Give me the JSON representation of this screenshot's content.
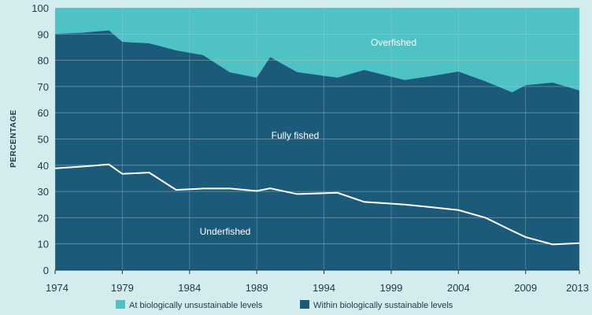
{
  "chart_data": {
    "type": "area",
    "ylabel": "PERCENTAGE",
    "xlabel": "",
    "ylim": [
      0,
      100
    ],
    "xlim": [
      1974,
      2013
    ],
    "x_ticks": [
      "1974",
      "1979",
      "1984",
      "1989",
      "1994",
      "1999",
      "2004",
      "2009",
      "2013"
    ],
    "y_ticks": [
      "0",
      "10",
      "20",
      "30",
      "40",
      "50",
      "60",
      "70",
      "80",
      "90",
      "100"
    ],
    "grid": true,
    "colors": {
      "unsustainable": "#4fc2c6",
      "sustainable": "#1b5a78",
      "line": "#ffffff",
      "grid": "#b8c9d0"
    },
    "series": [
      {
        "key": "sustainable_total",
        "x": [
          1974,
          1976,
          1978,
          1979,
          1981,
          1983,
          1985,
          1987,
          1989,
          1990,
          1992,
          1995,
          1997,
          2000,
          2002,
          2004,
          2006,
          2008,
          2009,
          2011,
          2013
        ],
        "values": [
          90.1,
          90.5,
          91.4,
          87.0,
          86.5,
          83.8,
          82.0,
          75.4,
          73.4,
          81.2,
          75.5,
          73.4,
          76.3,
          72.5,
          74.0,
          75.7,
          72.0,
          67.8,
          70.5,
          71.5,
          68.5
        ]
      },
      {
        "key": "underfished_boundary",
        "x": [
          1974,
          1976,
          1978,
          1979,
          1981,
          1983,
          1985,
          1987,
          1989,
          1990,
          1992,
          1995,
          1997,
          2000,
          2002,
          2004,
          2006,
          2008,
          2009,
          2011,
          2013
        ],
        "values": [
          38.8,
          39.5,
          40.3,
          36.7,
          37.2,
          30.6,
          31.1,
          31.1,
          30.2,
          31.2,
          29.0,
          29.5,
          26.0,
          25.0,
          24.0,
          22.9,
          20.0,
          15.0,
          12.6,
          9.8,
          10.3
        ]
      }
    ],
    "region_labels": {
      "overfished": "Overfished",
      "fully_fished": "Fully fished",
      "underfished": "Underfished"
    },
    "legend": [
      {
        "label": "At biologically unsustainable levels",
        "color": "#4fc2c6"
      },
      {
        "label": "Within biologically sustainable levels",
        "color": "#1b5a78"
      }
    ]
  }
}
